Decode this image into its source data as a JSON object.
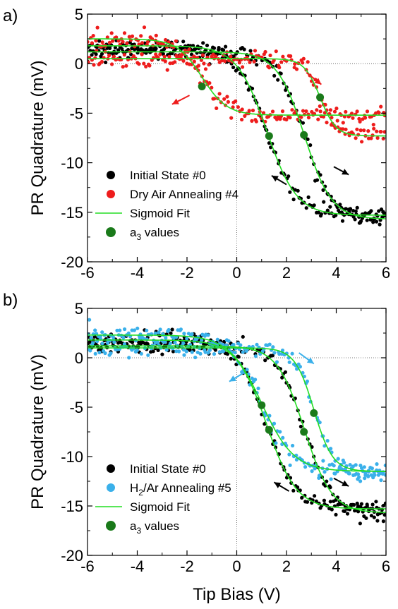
{
  "chart_data": [
    {
      "type": "scatter",
      "panel_label": "a)",
      "xlabel": "",
      "ylabel": "PR Quadrature (mV)",
      "xlim": [
        -6,
        6
      ],
      "ylim": [
        -20,
        5
      ],
      "xticks": [
        -6,
        -4,
        -2,
        0,
        2,
        4,
        6
      ],
      "yticks": [
        5,
        0,
        -5,
        -10,
        -15,
        -20
      ],
      "tick_labels_x": [
        "-6",
        "-4",
        "-2",
        "0",
        "2",
        "4",
        "6"
      ],
      "tick_labels_y": [
        "5",
        "0",
        "-5",
        "-10",
        "-15",
        "-20"
      ],
      "grid": false,
      "zero_lines": true,
      "legend_position": "bottom-left",
      "legend": [
        {
          "label": "Initial State #0",
          "marker": "circle",
          "color": "#000000"
        },
        {
          "label": "Dry Air Annealing #4",
          "marker": "circle",
          "color": "#ee1c1c"
        },
        {
          "label": "Sigmoid Fit",
          "marker": "line",
          "color": "#22dd22"
        },
        {
          "label_main": "a",
          "label_sub": "3",
          "label_rest": " values",
          "marker": "circle-large",
          "color": "#1a7a1a"
        }
      ],
      "series": [
        {
          "name": "Initial State #0",
          "color": "#000000",
          "branch": "forward",
          "sigmoid": {
            "top": 1.2,
            "bottom": -15.7,
            "x0": 2.72,
            "w": 0.55
          }
        },
        {
          "name": "Initial State #0",
          "color": "#000000",
          "branch": "reverse",
          "sigmoid": {
            "top": 1.8,
            "bottom": -15.3,
            "x0": 1.2,
            "w": 0.6
          }
        },
        {
          "name": "Dry Air Annealing #4",
          "color": "#ee1c1c",
          "branch": "forward",
          "sigmoid": {
            "top": 0.5,
            "bottom": -7.3,
            "x0": 3.35,
            "w": 0.32
          }
        },
        {
          "name": "Dry Air Annealing #4",
          "color": "#ee1c1c",
          "branch": "reverse",
          "sigmoid": {
            "top": 2.5,
            "bottom": -5.2,
            "x0": -1.4,
            "w": 0.5
          }
        }
      ],
      "a3_values": [
        {
          "x": 2.7,
          "y": -7.2
        },
        {
          "x": 1.3,
          "y": -7.3
        },
        {
          "x": 3.35,
          "y": -3.4
        },
        {
          "x": -1.4,
          "y": -2.3
        }
      ],
      "arrows": [
        {
          "color": "#000000",
          "from": [
            3.9,
            -10.4
          ],
          "to": [
            4.5,
            -11.2
          ]
        },
        {
          "color": "#000000",
          "from": [
            2.0,
            -12.2
          ],
          "to": [
            1.4,
            -11.3
          ]
        },
        {
          "color": "#ee1c1c",
          "from": [
            2.8,
            -0.9
          ],
          "to": [
            3.4,
            -2.1
          ]
        },
        {
          "color": "#ee1c1c",
          "from": [
            -1.9,
            -3.2
          ],
          "to": [
            -2.6,
            -4.1
          ]
        }
      ]
    },
    {
      "type": "scatter",
      "panel_label": "b)",
      "xlabel": "Tip Bias (V)",
      "ylabel": "PR Quadrature (mV)",
      "xlim": [
        -6,
        6
      ],
      "ylim": [
        -20,
        5
      ],
      "xticks": [
        -6,
        -4,
        -2,
        0,
        2,
        4,
        6
      ],
      "yticks": [
        5,
        0,
        -5,
        -10,
        -15,
        -20
      ],
      "tick_labels_x": [
        "-6",
        "-4",
        "-2",
        "0",
        "2",
        "4",
        "6"
      ],
      "tick_labels_y": [
        "5",
        "0",
        "-5",
        "-10",
        "-15",
        "-20"
      ],
      "grid": false,
      "zero_lines": true,
      "legend_position": "bottom-left",
      "legend": [
        {
          "label": "Initial State #0",
          "marker": "circle",
          "color": "#000000"
        },
        {
          "label_main": "H",
          "label_sub": "2",
          "label_rest": "/Ar Annealing #5",
          "marker": "circle",
          "color": "#3ab0ea"
        },
        {
          "label": "Sigmoid Fit",
          "marker": "line",
          "color": "#22dd22"
        },
        {
          "label_main": "a",
          "label_sub": "3",
          "label_rest": " values",
          "marker": "circle-large",
          "color": "#1a7a1a"
        }
      ],
      "series": [
        {
          "name": "Initial State #0",
          "color": "#000000",
          "branch": "forward",
          "sigmoid": {
            "top": 1.2,
            "bottom": -15.7,
            "x0": 2.72,
            "w": 0.55
          }
        },
        {
          "name": "Initial State #0",
          "color": "#000000",
          "branch": "reverse",
          "sigmoid": {
            "top": 1.8,
            "bottom": -15.3,
            "x0": 1.2,
            "w": 0.6
          }
        },
        {
          "name": "H2/Ar Annealing #5",
          "color": "#3ab0ea",
          "branch": "forward",
          "sigmoid": {
            "top": 1.0,
            "bottom": -11.5,
            "x0": 3.1,
            "w": 0.38
          }
        },
        {
          "name": "H2/Ar Annealing #5",
          "color": "#3ab0ea",
          "branch": "reverse",
          "sigmoid": {
            "top": 2.3,
            "bottom": -11.5,
            "x0": 1.0,
            "w": 0.65
          }
        }
      ],
      "a3_values": [
        {
          "x": 2.7,
          "y": -7.5
        },
        {
          "x": 1.3,
          "y": -7.3
        },
        {
          "x": 3.1,
          "y": -5.6
        },
        {
          "x": 1.0,
          "y": -4.8
        }
      ],
      "arrows": [
        {
          "color": "#000000",
          "from": [
            3.9,
            -12.2
          ],
          "to": [
            4.5,
            -13.0
          ]
        },
        {
          "color": "#000000",
          "from": [
            2.1,
            -13.5
          ],
          "to": [
            1.5,
            -12.6
          ]
        },
        {
          "color": "#3ab0ea",
          "from": [
            2.5,
            0.5
          ],
          "to": [
            3.1,
            -0.6
          ]
        },
        {
          "color": "#3ab0ea",
          "from": [
            0.3,
            -1.5
          ],
          "to": [
            -0.3,
            -2.4
          ]
        }
      ]
    }
  ]
}
